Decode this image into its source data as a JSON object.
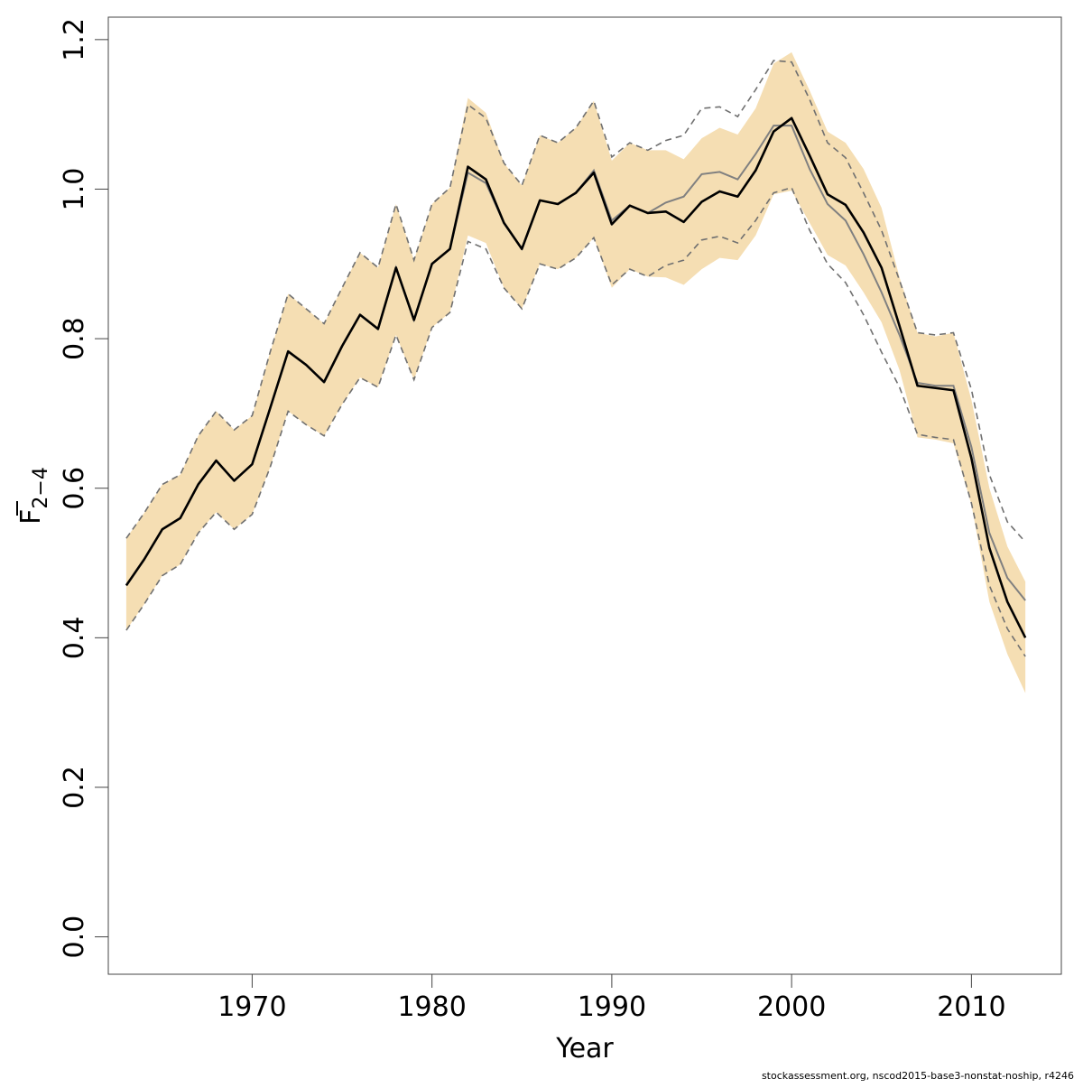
{
  "chart_data": {
    "type": "line",
    "title": "",
    "xlabel": "Year",
    "ylabel_main": "F",
    "ylabel_sub": "2−4",
    "xlim": [
      1962,
      2015
    ],
    "ylim": [
      -0.05,
      1.23
    ],
    "xticks": [
      "1970",
      "1980",
      "1990",
      "2000",
      "2010"
    ],
    "yticks": [
      "0.0",
      "0.2",
      "0.4",
      "0.6",
      "0.8",
      "1.0",
      "1.2"
    ],
    "grid": false,
    "legend": "none",
    "colors": {
      "ci_band": "#f5deb3",
      "estimate_line": "#000000",
      "comparison_line": "#808080",
      "comparison_ci": "#707070"
    },
    "x": [
      1963,
      1964,
      1965,
      1966,
      1967,
      1968,
      1969,
      1970,
      1971,
      1972,
      1973,
      1974,
      1975,
      1976,
      1977,
      1978,
      1979,
      1980,
      1981,
      1982,
      1983,
      1984,
      1985,
      1986,
      1987,
      1988,
      1989,
      1990,
      1991,
      1992,
      1993,
      1994,
      1995,
      1996,
      1997,
      1998,
      1999,
      2000,
      2001,
      2002,
      2003,
      2004,
      2005,
      2006,
      2007,
      2008,
      2009,
      2010,
      2011,
      2012,
      2013
    ],
    "series": [
      {
        "role": "ci_band",
        "upper": [
          0.533,
          0.567,
          0.605,
          0.618,
          0.67,
          0.703,
          0.678,
          0.697,
          0.782,
          0.86,
          0.84,
          0.82,
          0.868,
          0.915,
          0.895,
          0.98,
          0.905,
          0.98,
          1.002,
          1.122,
          1.102,
          1.035,
          1.005,
          1.072,
          1.062,
          1.082,
          1.118,
          1.038,
          1.062,
          1.052,
          1.052,
          1.04,
          1.068,
          1.082,
          1.073,
          1.108,
          1.168,
          1.183,
          1.132,
          1.077,
          1.062,
          1.027,
          0.975,
          0.882,
          0.808,
          0.803,
          0.808,
          0.718,
          0.6,
          0.522,
          0.475
        ],
        "lower": [
          0.41,
          0.445,
          0.483,
          0.498,
          0.54,
          0.568,
          0.545,
          0.565,
          0.628,
          0.703,
          0.685,
          0.67,
          0.712,
          0.748,
          0.735,
          0.805,
          0.745,
          0.815,
          0.835,
          0.938,
          0.928,
          0.868,
          0.84,
          0.9,
          0.893,
          0.908,
          0.935,
          0.868,
          0.893,
          0.883,
          0.882,
          0.872,
          0.893,
          0.908,
          0.905,
          0.938,
          0.993,
          0.998,
          0.955,
          0.912,
          0.898,
          0.862,
          0.822,
          0.758,
          0.668,
          0.665,
          0.66,
          0.578,
          0.448,
          0.378,
          0.326
        ]
      },
      {
        "role": "estimate_line",
        "values": [
          0.47,
          0.505,
          0.545,
          0.56,
          0.605,
          0.637,
          0.61,
          0.632,
          0.707,
          0.783,
          0.765,
          0.742,
          0.79,
          0.832,
          0.813,
          0.895,
          0.825,
          0.9,
          0.92,
          1.03,
          1.013,
          0.955,
          0.92,
          0.985,
          0.98,
          0.995,
          1.022,
          0.953,
          0.978,
          0.968,
          0.97,
          0.956,
          0.983,
          0.997,
          0.99,
          1.025,
          1.077,
          1.095,
          1.045,
          0.993,
          0.979,
          0.942,
          0.895,
          0.817,
          0.737,
          0.734,
          0.731,
          0.64,
          0.52,
          0.448,
          0.4
        ]
      },
      {
        "role": "comparison_line",
        "values": [
          0.47,
          0.505,
          0.545,
          0.56,
          0.605,
          0.637,
          0.61,
          0.632,
          0.707,
          0.783,
          0.765,
          0.742,
          0.79,
          0.832,
          0.813,
          0.895,
          0.825,
          0.9,
          0.92,
          1.022,
          1.008,
          0.955,
          0.92,
          0.985,
          0.98,
          0.995,
          1.025,
          0.958,
          0.978,
          0.968,
          0.982,
          0.99,
          1.02,
          1.023,
          1.013,
          1.047,
          1.085,
          1.085,
          1.027,
          0.98,
          0.958,
          0.913,
          0.862,
          0.805,
          0.741,
          0.737,
          0.737,
          0.655,
          0.54,
          0.48,
          0.45
        ]
      },
      {
        "role": "comparison_ci",
        "upper": [
          0.533,
          0.567,
          0.605,
          0.618,
          0.67,
          0.703,
          0.678,
          0.697,
          0.782,
          0.86,
          0.84,
          0.82,
          0.868,
          0.915,
          0.895,
          0.98,
          0.905,
          0.98,
          1.002,
          1.113,
          1.095,
          1.035,
          1.005,
          1.072,
          1.062,
          1.082,
          1.118,
          1.043,
          1.062,
          1.052,
          1.065,
          1.072,
          1.108,
          1.11,
          1.097,
          1.133,
          1.172,
          1.17,
          1.12,
          1.062,
          1.042,
          0.995,
          0.945,
          0.878,
          0.808,
          0.805,
          0.808,
          0.732,
          0.618,
          0.555,
          0.528
        ],
        "lower": [
          0.41,
          0.445,
          0.483,
          0.498,
          0.54,
          0.568,
          0.545,
          0.565,
          0.628,
          0.703,
          0.685,
          0.67,
          0.712,
          0.748,
          0.735,
          0.805,
          0.745,
          0.815,
          0.835,
          0.93,
          0.92,
          0.868,
          0.84,
          0.9,
          0.893,
          0.908,
          0.935,
          0.872,
          0.893,
          0.883,
          0.898,
          0.905,
          0.932,
          0.937,
          0.928,
          0.958,
          0.995,
          1.002,
          0.945,
          0.9,
          0.875,
          0.832,
          0.782,
          0.735,
          0.672,
          0.668,
          0.665,
          0.58,
          0.47,
          0.412,
          0.375
        ]
      }
    ]
  },
  "footnote": "stockassessment.org, nscod2015-base3-nonstat-noship, r4246"
}
